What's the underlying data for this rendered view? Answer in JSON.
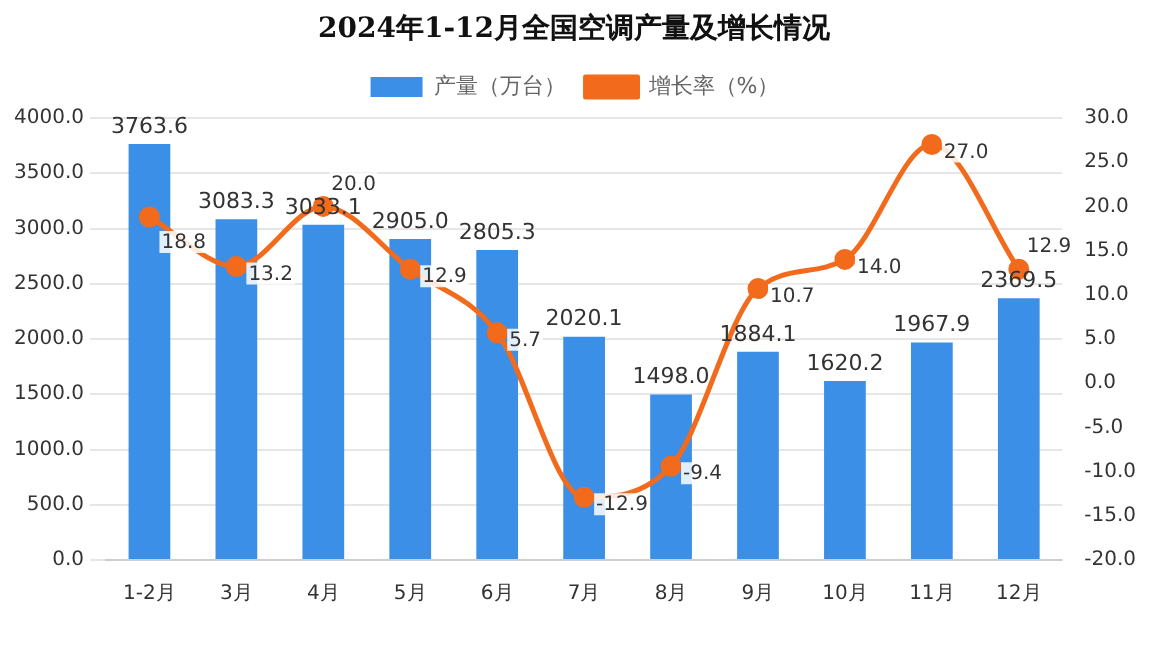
{
  "chart_data": {
    "type": "bar",
    "title": "2024年1-12月全国空调产量及增长情况",
    "categories": [
      "1-2月",
      "3月",
      "4月",
      "5月",
      "6月",
      "7月",
      "8月",
      "9月",
      "10月",
      "11月",
      "12月"
    ],
    "series": [
      {
        "name": "产量（万台）",
        "color": "#3b8fe6",
        "values": [
          3763.6,
          3083.3,
          3033.1,
          2905.0,
          2805.3,
          2020.1,
          1498.0,
          1884.1,
          1620.2,
          1967.9,
          2369.5
        ],
        "value_labels": [
          "3763.6",
          "3083.3",
          "3033.1",
          "2905.0",
          "2805.3",
          "2020.1",
          "1498.0",
          "1884.1",
          "1620.2",
          "1967.9",
          "2369.5"
        ]
      },
      {
        "name": "增长率（%）",
        "type": "line",
        "axis": "y2",
        "color": "#f26b1d",
        "values": [
          18.8,
          13.2,
          20.0,
          12.9,
          5.7,
          -12.9,
          -9.4,
          10.7,
          14.0,
          27.0,
          12.9
        ],
        "value_labels": [
          "18.8",
          "13.2",
          "20.0",
          "12.9",
          "5.7",
          "-12.9",
          "-9.4",
          "10.7",
          "14.0",
          "27.0",
          "12.9"
        ]
      }
    ],
    "ylim": [
      0,
      4000
    ],
    "yticks": [
      {
        "value": 0,
        "label": "0.0"
      },
      {
        "value": 500,
        "label": "500.0"
      },
      {
        "value": 1000,
        "label": "1000.0"
      },
      {
        "value": 1500,
        "label": "1500.0"
      },
      {
        "value": 2000,
        "label": "2000.0"
      },
      {
        "value": 2500,
        "label": "2500.0"
      },
      {
        "value": 3000,
        "label": "3000.0"
      },
      {
        "value": 3500,
        "label": "3500.0"
      },
      {
        "value": 4000,
        "label": "4000.0"
      }
    ],
    "y2lim": [
      -20,
      30
    ],
    "y2ticks": [
      {
        "value": -20,
        "label": "-20.0"
      },
      {
        "value": -15,
        "label": "-15.0"
      },
      {
        "value": -10,
        "label": "-10.0"
      },
      {
        "value": -5,
        "label": "-5.0"
      },
      {
        "value": 0,
        "label": "0.0"
      },
      {
        "value": 5,
        "label": "5.0"
      },
      {
        "value": 10,
        "label": "10.0"
      },
      {
        "value": 15,
        "label": "15.0"
      },
      {
        "value": 20,
        "label": "20.0"
      },
      {
        "value": 25,
        "label": "25.0"
      },
      {
        "value": 30,
        "label": "30.0"
      }
    ],
    "grid": "y",
    "legend": "top",
    "marker": "circle",
    "line_style": "solid"
  }
}
